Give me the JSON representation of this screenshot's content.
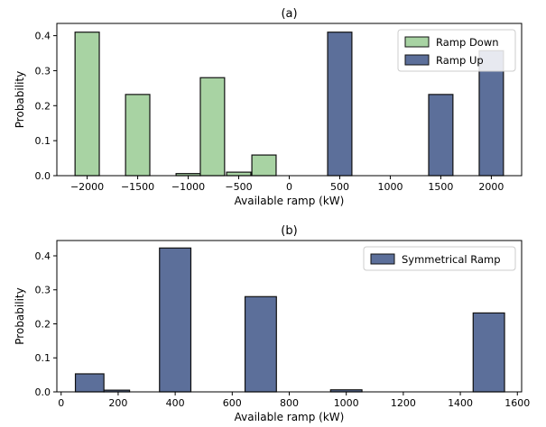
{
  "colors": {
    "ramp_down": "#a8d3a3",
    "ramp_up": "#5c6f9a",
    "symmetrical": "#5c6f9a",
    "edge": "#111111"
  },
  "chart_data": [
    {
      "type": "bar",
      "title": "(a)",
      "xlabel": "Available ramp (kW)",
      "ylabel": "Probability",
      "xlim": [
        -2300,
        2300
      ],
      "ylim": [
        0,
        0.435
      ],
      "xticks": [
        -2000,
        -1500,
        -1000,
        -500,
        0,
        500,
        1000,
        1500,
        2000
      ],
      "xtick_labels": [
        "−2000",
        "−1500",
        "−1000",
        "−500",
        "0",
        "500",
        "1000",
        "1500",
        "2000"
      ],
      "yticks": [
        0.0,
        0.1,
        0.2,
        0.3,
        0.4
      ],
      "ytick_labels": [
        "0.0",
        "0.1",
        "0.2",
        "0.3",
        "0.4"
      ],
      "legend_position": "top-right",
      "series": [
        {
          "name": "Ramp Down",
          "color_key": "ramp_down",
          "bars": [
            {
              "x0": -2120,
              "x1": -1880,
              "value": 0.41
            },
            {
              "x0": -1620,
              "x1": -1380,
              "value": 0.232
            },
            {
              "x0": -1120,
              "x1": -880,
              "value": 0.006
            },
            {
              "x0": -880,
              "x1": -640,
              "value": 0.28
            },
            {
              "x0": -620,
              "x1": -380,
              "value": 0.01
            },
            {
              "x0": -370,
              "x1": -130,
              "value": 0.059
            }
          ]
        },
        {
          "name": "Ramp Up",
          "color_key": "ramp_up",
          "bars": [
            {
              "x0": 380,
              "x1": 620,
              "value": 0.41
            },
            {
              "x0": 1380,
              "x1": 1620,
              "value": 0.232
            },
            {
              "x0": 1880,
              "x1": 2120,
              "value": 0.357
            }
          ]
        }
      ]
    },
    {
      "type": "bar",
      "title": "(b)",
      "xlabel": "Available ramp (kW)",
      "ylabel": "Probability",
      "xlim": [
        -15,
        1615
      ],
      "ylim": [
        0,
        0.445
      ],
      "xticks": [
        0,
        200,
        400,
        600,
        800,
        1000,
        1200,
        1400,
        1600
      ],
      "xtick_labels": [
        "0",
        "200",
        "400",
        "600",
        "800",
        "1000",
        "1200",
        "1400",
        "1600"
      ],
      "yticks": [
        0.0,
        0.1,
        0.2,
        0.3,
        0.4
      ],
      "ytick_labels": [
        "0.0",
        "0.1",
        "0.2",
        "0.3",
        "0.4"
      ],
      "legend_position": "top-right",
      "series": [
        {
          "name": "Symmetrical Ramp",
          "color_key": "symmetrical",
          "bars": [
            {
              "x0": 50,
              "x1": 150,
              "value": 0.053
            },
            {
              "x0": 150,
              "x1": 240,
              "value": 0.005
            },
            {
              "x0": 345,
              "x1": 455,
              "value": 0.423
            },
            {
              "x0": 645,
              "x1": 755,
              "value": 0.28
            },
            {
              "x0": 945,
              "x1": 1055,
              "value": 0.006
            },
            {
              "x0": 1445,
              "x1": 1555,
              "value": 0.232
            }
          ]
        }
      ]
    }
  ]
}
